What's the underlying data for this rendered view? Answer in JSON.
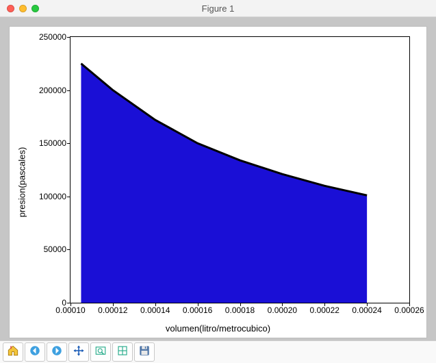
{
  "window": {
    "title": "Figure 1",
    "traffic_colors": [
      "#ff5f56",
      "#ffbd2e",
      "#27c93f"
    ]
  },
  "chart": {
    "type": "area",
    "xlabel": "volumen(litro/metrocubico)",
    "ylabel": "presion(pascales)",
    "xlim": [
      0.0001,
      0.00026
    ],
    "ylim": [
      0,
      250000
    ],
    "yticks": [
      0,
      50000,
      100000,
      150000,
      200000,
      250000
    ],
    "xticks": [
      0.0001,
      0.00012,
      0.00014,
      0.00016,
      0.00018,
      0.0002,
      0.00022,
      0.00024,
      0.00026
    ],
    "xtick_labels": [
      "0.00010",
      "0.00012",
      "0.00014",
      "0.00016",
      "0.00018",
      "0.00020",
      "0.00022",
      "0.00024",
      "0.00026"
    ],
    "series": {
      "x": [
        0.000105,
        0.00012,
        0.00014,
        0.00016,
        0.00018,
        0.0002,
        0.00022,
        0.00024
      ],
      "y": [
        225000,
        200000,
        172000,
        150000,
        134000,
        121000,
        110000,
        101000
      ]
    },
    "fill_color": "#1a0fd6",
    "line_color": "#000000",
    "line_width": 1,
    "background_color": "#ffffff",
    "axis_color": "#000000",
    "tick_fontsize": 12,
    "label_fontsize": 13
  },
  "toolbar": {
    "buttons": [
      {
        "name": "home-icon"
      },
      {
        "name": "back-icon"
      },
      {
        "name": "forward-icon"
      },
      {
        "name": "pan-icon"
      },
      {
        "name": "zoom-icon"
      },
      {
        "name": "configure-icon"
      },
      {
        "name": "save-icon"
      }
    ]
  }
}
